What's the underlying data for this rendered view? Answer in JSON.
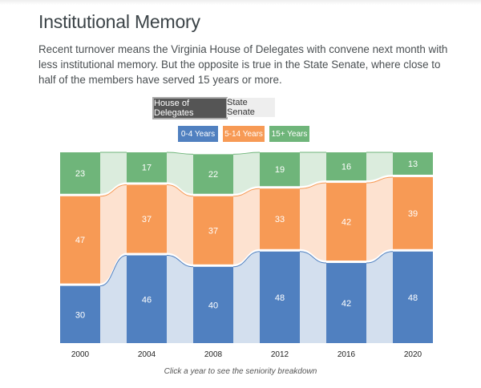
{
  "title": "Institutional Memory",
  "intro": "Recent turnover means the Virginia House of Delegates with convene next month with less institutional memory. But the opposite is true in the State Senate, where close to half of the members have served 15 years or more.",
  "toggles": [
    {
      "label": "House of Delegates",
      "active": true
    },
    {
      "label": "State Senate",
      "active": false
    }
  ],
  "legend": [
    {
      "label": "0-4 Years",
      "color": "#5080c0"
    },
    {
      "label": "5-14 Years",
      "color": "#f79a55"
    },
    {
      "label": "15+ Years",
      "color": "#6fb57a"
    }
  ],
  "caption": "Click a year to see the seniority breakdown",
  "chart_data": {
    "type": "bar",
    "stacked": true,
    "categories": [
      "2000",
      "2004",
      "2008",
      "2012",
      "2016",
      "2020"
    ],
    "series": [
      {
        "name": "0-4 Years",
        "color": "#5080c0",
        "light": "#d3dfee",
        "values": [
          30,
          46,
          40,
          48,
          42,
          48
        ]
      },
      {
        "name": "5-14 Years",
        "color": "#f79a55",
        "light": "#fde2d0",
        "values": [
          47,
          37,
          37,
          33,
          42,
          39
        ]
      },
      {
        "name": "15+ Years",
        "color": "#6fb57a",
        "light": "#dbecdd",
        "values": [
          23,
          17,
          22,
          19,
          16,
          13
        ]
      }
    ],
    "ylim": [
      0,
      100
    ]
  }
}
